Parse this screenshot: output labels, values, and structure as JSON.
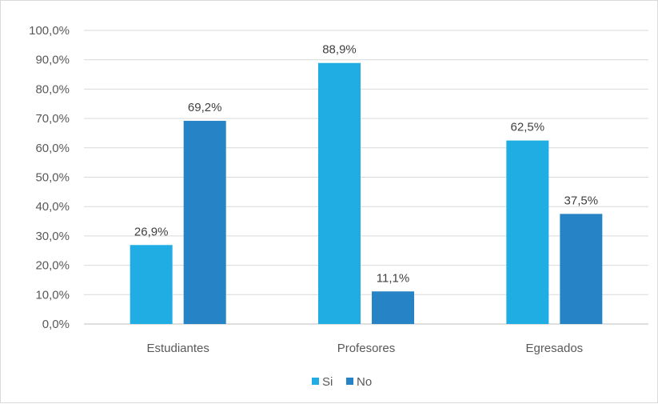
{
  "chart_data": {
    "type": "bar",
    "categories": [
      "Estudiantes",
      "Profesores",
      "Egresados"
    ],
    "series": [
      {
        "name": "Si",
        "values": [
          26.9,
          88.9,
          62.5
        ],
        "labels": [
          "26,9%",
          "88,9%",
          "62,5%"
        ],
        "color": "#1fade3"
      },
      {
        "name": "No",
        "values": [
          69.2,
          11.1,
          37.5
        ],
        "labels": [
          "69,2%",
          "11,1%",
          "37,5%"
        ],
        "color": "#2683c6"
      }
    ],
    "ylim": [
      0,
      100
    ],
    "yticks": [
      0,
      10,
      20,
      30,
      40,
      50,
      60,
      70,
      80,
      90,
      100
    ],
    "ytick_labels": [
      "0,0%",
      "10,0%",
      "20,0%",
      "30,0%",
      "40,0%",
      "50,0%",
      "60,0%",
      "70,0%",
      "80,0%",
      "90,0%",
      "100,0%"
    ],
    "grid": true,
    "legend_position": "bottom",
    "title": "",
    "xlabel": "",
    "ylabel": ""
  }
}
